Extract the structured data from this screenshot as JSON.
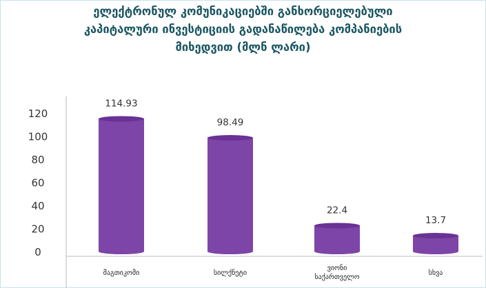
{
  "chart_data": {
    "type": "bar",
    "title_lines": [
      "ელექტრონულ კომუნიკაციებში განხორციელებული",
      "კაპიტალური ინვესტიციის გადანაწილება კომპანიების",
      "მიხედვით (მლნ ლარი)"
    ],
    "categories": [
      [
        "მაგთიკომი"
      ],
      [
        "სილქნეტი"
      ],
      [
        "ვიონი",
        "საქართველო"
      ],
      [
        "სხვა"
      ]
    ],
    "values": [
      114.93,
      98.49,
      22.4,
      13.7
    ],
    "value_labels": [
      "114.93",
      "98.49",
      "22.4",
      "13.7"
    ],
    "y_ticks": [
      0,
      20,
      40,
      60,
      80,
      100,
      120
    ],
    "ylim": [
      0,
      120
    ],
    "xlabel": "",
    "ylabel": "",
    "grid": false,
    "bar_color": "#7e45a8",
    "bar_top_color": "#6a3294"
  }
}
